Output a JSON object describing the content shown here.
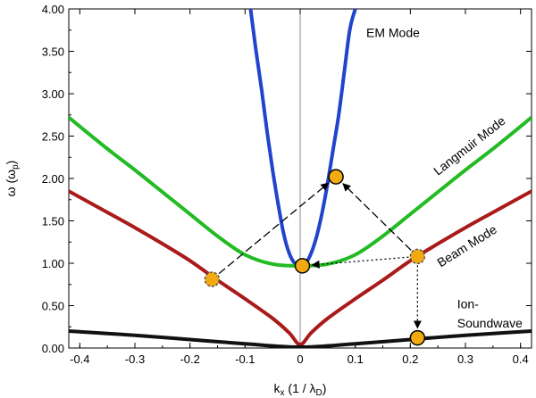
{
  "chart_data": {
    "type": "line",
    "xlabel": "k",
    "xlabel_sub": "x",
    "xlabel_units_prefix": " (1 / λ",
    "xlabel_units_sub": "D",
    "xlabel_units_suffix": ")",
    "ylabel": "ω (ω",
    "ylabel_sub": "p",
    "ylabel_suffix": ")",
    "xlim": [
      -0.42,
      0.42
    ],
    "ylim": [
      0,
      4.0
    ],
    "x_ticks": [
      -0.4,
      -0.3,
      -0.2,
      -0.1,
      0,
      0.1,
      0.2,
      0.3,
      0.4
    ],
    "x_tick_labels": [
      "-0.4",
      "-0.3",
      "-0.2",
      "-0.1",
      "0",
      "0.1",
      "0.2",
      "0.3",
      "0.4"
    ],
    "y_ticks": [
      0,
      0.5,
      1.0,
      1.5,
      2.0,
      2.5,
      3.0,
      3.5,
      4.0
    ],
    "y_tick_labels": [
      "0.00",
      "0.50",
      "1.00",
      "1.50",
      "2.00",
      "2.50",
      "3.00",
      "3.50",
      "4.00"
    ],
    "vertical_zero_line": true,
    "series": [
      {
        "name": "EM Mode",
        "color": "#2244cc",
        "x": [
          -0.09,
          -0.08,
          -0.07,
          -0.06,
          -0.05,
          -0.04,
          -0.03,
          -0.02,
          -0.01,
          0.0,
          0.01,
          0.02,
          0.03,
          0.04,
          0.05,
          0.06,
          0.07,
          0.08,
          0.09,
          0.1
        ],
        "y": [
          4.0,
          3.5,
          3.05,
          2.55,
          2.1,
          1.7,
          1.35,
          1.12,
          1.0,
          0.97,
          1.0,
          1.12,
          1.32,
          1.6,
          1.95,
          2.35,
          2.75,
          3.25,
          3.75,
          4.0
        ]
      },
      {
        "name": "Langmuir Mode",
        "color": "#22bb22",
        "x": [
          -0.42,
          -0.35,
          -0.3,
          -0.25,
          -0.2,
          -0.15,
          -0.1,
          -0.05,
          0.0,
          0.05,
          0.1,
          0.15,
          0.2,
          0.25,
          0.3,
          0.35,
          0.42
        ],
        "y": [
          2.72,
          2.35,
          2.1,
          1.84,
          1.58,
          1.32,
          1.1,
          0.99,
          0.97,
          0.99,
          1.1,
          1.32,
          1.58,
          1.84,
          2.1,
          2.35,
          2.72
        ]
      },
      {
        "name": "Beam Mode",
        "color": "#aa1a1a",
        "x": [
          -0.42,
          -0.35,
          -0.3,
          -0.25,
          -0.2,
          -0.15,
          -0.1,
          -0.05,
          -0.02,
          0.0,
          0.02,
          0.05,
          0.1,
          0.15,
          0.2,
          0.25,
          0.3,
          0.35,
          0.42
        ],
        "y": [
          1.85,
          1.6,
          1.42,
          1.23,
          1.03,
          0.8,
          0.58,
          0.35,
          0.18,
          0.04,
          0.18,
          0.35,
          0.58,
          0.8,
          1.03,
          1.23,
          1.42,
          1.6,
          1.85
        ]
      },
      {
        "name": "Ion-Soundwave",
        "color": "#111111",
        "x": [
          -0.42,
          -0.3,
          -0.2,
          -0.1,
          0.0,
          0.1,
          0.2,
          0.3,
          0.42
        ],
        "y": [
          0.2,
          0.15,
          0.1,
          0.05,
          0.01,
          0.05,
          0.1,
          0.15,
          0.2
        ]
      }
    ],
    "annotations": [
      {
        "text": "EM Mode",
        "x": 0.12,
        "y": 3.67,
        "rotate": 0
      },
      {
        "text": "Langmuir Mode",
        "x": 0.25,
        "y": 2.03,
        "rotate": -38
      },
      {
        "text": "Beam Mode",
        "x": 0.255,
        "y": 0.95,
        "rotate": -32
      },
      {
        "text": "Ion-",
        "x": 0.285,
        "y": 0.47,
        "rotate": 0
      },
      {
        "text": "Soundwave",
        "x": 0.285,
        "y": 0.24,
        "rotate": 0
      }
    ],
    "points": [
      {
        "x": 0.004,
        "y": 0.97,
        "style": "solid"
      },
      {
        "x": 0.065,
        "y": 2.02,
        "style": "solid"
      },
      {
        "x": 0.213,
        "y": 0.12,
        "style": "solid"
      },
      {
        "x": 0.213,
        "y": 1.08,
        "style": "dashed"
      },
      {
        "x": -0.16,
        "y": 0.81,
        "style": "dashed"
      }
    ],
    "arrows": [
      {
        "from": [
          -0.16,
          0.81
        ],
        "to": [
          0.065,
          2.02
        ],
        "style": "dashed"
      },
      {
        "from": [
          0.213,
          1.08
        ],
        "to": [
          0.065,
          2.02
        ],
        "style": "dashed"
      },
      {
        "from": [
          0.213,
          1.08
        ],
        "to": [
          0.004,
          0.97
        ],
        "style": "dotted"
      },
      {
        "from": [
          0.213,
          1.08
        ],
        "to": [
          0.213,
          0.12
        ],
        "style": "dotted"
      }
    ],
    "marker_color": "#f2aa10",
    "grid": false,
    "legend": "none"
  }
}
